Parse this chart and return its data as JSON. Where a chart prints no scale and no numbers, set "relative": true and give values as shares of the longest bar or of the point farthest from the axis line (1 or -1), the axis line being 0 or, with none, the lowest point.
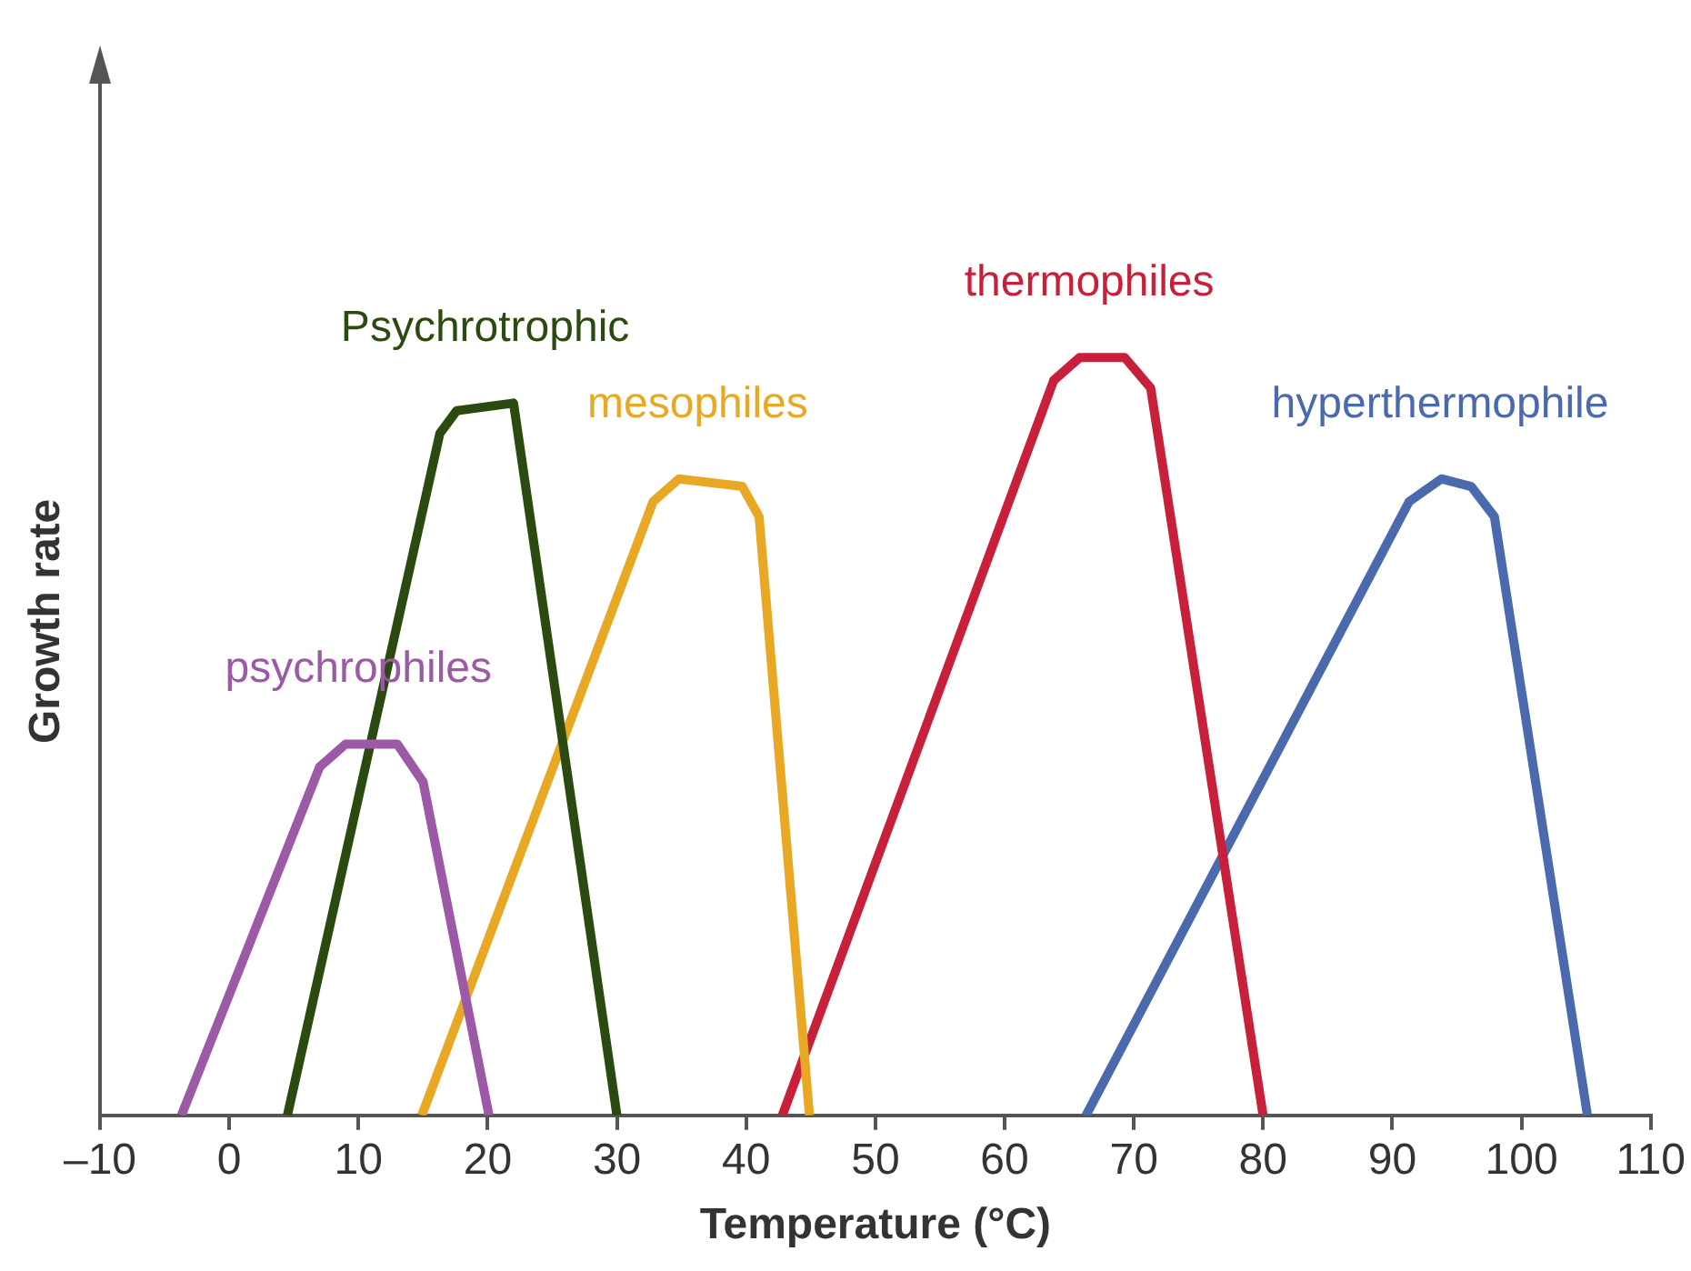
{
  "chart_data": {
    "type": "line",
    "relative": true,
    "xlabel": "Temperature (°C)",
    "ylabel": "Growth rate",
    "xlim": [
      -10,
      110
    ],
    "xticks": [
      {
        "value": -10,
        "label": "–10"
      },
      0,
      10,
      20,
      30,
      40,
      50,
      60,
      70,
      80,
      90,
      100,
      110
    ],
    "grid": false,
    "legend": false,
    "marker": "none",
    "line_style": "solid",
    "series": [
      {
        "name": "psychrophiles",
        "color": "#9b59a6",
        "x": [
          -3.7,
          7,
          9,
          13,
          15,
          20.1
        ],
        "values": [
          0,
          0.46,
          0.49,
          0.49,
          0.44,
          0
        ]
      },
      {
        "name": "Psychrotrophic",
        "color": "#2b4a10",
        "x": [
          4.5,
          16.3,
          17.6,
          22,
          30
        ],
        "values": [
          0,
          0.9,
          0.93,
          0.94,
          0
        ]
      },
      {
        "name": "mesophiles",
        "color": "#e8a823",
        "x": [
          14.9,
          32.8,
          34.8,
          39.7,
          41,
          44.9
        ],
        "values": [
          0,
          0.81,
          0.84,
          0.83,
          0.79,
          0
        ]
      },
      {
        "name": "thermophiles",
        "color": "#c8203a",
        "x": [
          42.8,
          63.8,
          65.8,
          69.3,
          71.3,
          80
        ],
        "values": [
          0,
          0.97,
          1,
          1,
          0.96,
          0
        ]
      },
      {
        "name": "hyperthermophile",
        "color": "#4a6aad",
        "x": [
          66.3,
          91.3,
          93.8,
          96.1,
          97.9,
          105.1
        ],
        "values": [
          0,
          0.81,
          0.84,
          0.83,
          0.79,
          0
        ]
      }
    ]
  }
}
